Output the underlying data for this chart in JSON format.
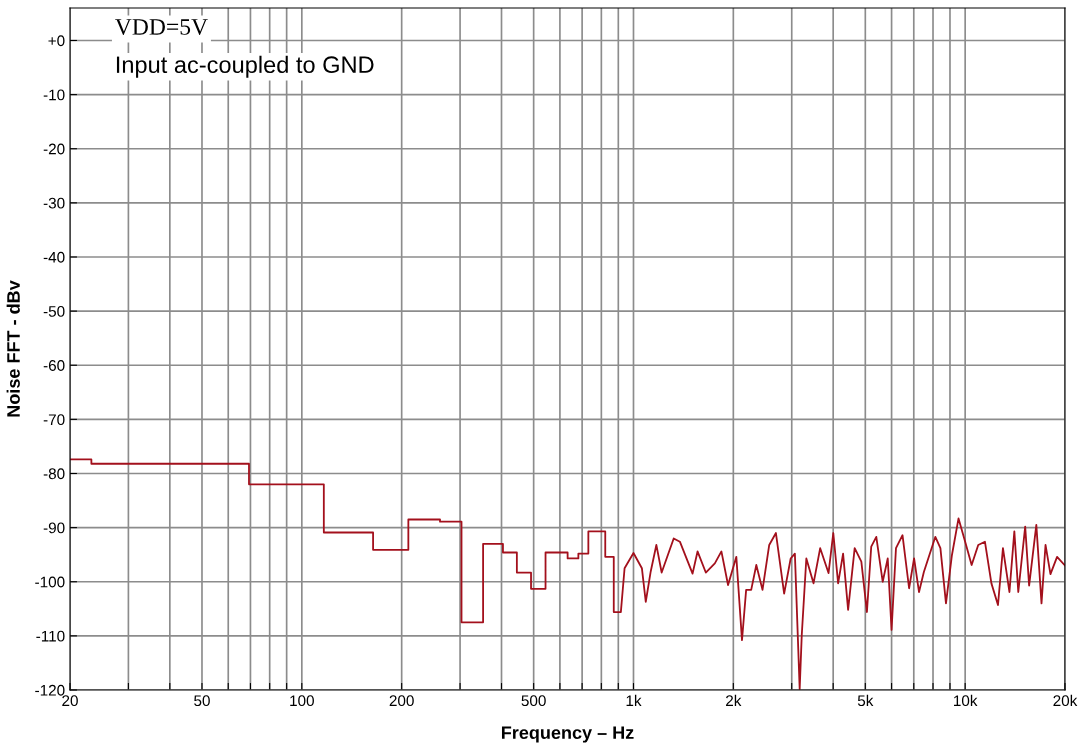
{
  "chart_data": {
    "type": "line",
    "xlabel": "Frequency – Hz",
    "ylabel": "Noise FFT - dBv",
    "annotations": [
      "VDD=5V",
      "Input ac-coupled to GND"
    ],
    "log": "x",
    "grid": true,
    "legend": false,
    "marker": "none",
    "line_style": "solid",
    "xlim": [
      20,
      20000
    ],
    "ylim": [
      -120,
      6
    ],
    "xticks": [
      20,
      {
        "value": 30,
        "label": null
      },
      {
        "value": 40,
        "label": null
      },
      50,
      {
        "value": 60,
        "label": null
      },
      {
        "value": 70,
        "label": null
      },
      {
        "value": 80,
        "label": null
      },
      {
        "value": 90,
        "label": null
      },
      100,
      200,
      {
        "value": 300,
        "label": null
      },
      {
        "value": 400,
        "label": null
      },
      500,
      {
        "value": 600,
        "label": null
      },
      {
        "value": 700,
        "label": null
      },
      {
        "value": 800,
        "label": null
      },
      {
        "value": 900,
        "label": null
      },
      {
        "value": 1000,
        "label": "1k"
      },
      {
        "value": 2000,
        "label": "2k"
      },
      {
        "value": 3000,
        "label": null
      },
      {
        "value": 4000,
        "label": null
      },
      {
        "value": 5000,
        "label": "5k"
      },
      {
        "value": 6000,
        "label": null
      },
      {
        "value": 7000,
        "label": null
      },
      {
        "value": 8000,
        "label": null
      },
      {
        "value": 9000,
        "label": null
      },
      {
        "value": 10000,
        "label": "10k"
      },
      {
        "value": 20000,
        "label": "20k"
      }
    ],
    "yticks": [
      {
        "value": 0,
        "label": "+0"
      },
      -10,
      -20,
      -30,
      -40,
      -50,
      -60,
      -70,
      -80,
      -90,
      -100,
      -110,
      -120
    ],
    "series": [
      {
        "color": "#a3101c",
        "x": [
          20,
          23.2,
          23.2,
          69.3,
          69.3,
          116.5,
          116.5,
          164,
          164,
          209.5,
          209.5,
          261,
          261,
          303,
          303,
          352,
          352,
          404,
          404,
          445,
          445,
          491,
          491,
          543,
          543,
          633,
          633,
          682,
          682,
          731,
          731,
          822,
          822,
          872,
          872,
          916,
          940,
          1000,
          1060,
          1089,
          1127,
          1172,
          1216,
          1322,
          1380,
          1507,
          1560,
          1652,
          1759,
          1841,
          1928,
          2042,
          2124,
          2186,
          2264,
          2346,
          2449,
          2566,
          2688,
          2846,
          2978,
          3066,
          3170,
          3216,
          3320,
          3490,
          3655,
          3873,
          4003,
          4140,
          4285,
          4437,
          4644,
          4864,
          5056,
          5210,
          5396,
          5641,
          5842,
          5999,
          6186,
          6473,
          6776,
          7015,
          7260,
          7507,
          8131,
          8421,
          8753,
          9121,
          9550,
          10000,
          10460,
          10950,
          11470,
          12000,
          12560,
          13000,
          13600,
          14070,
          14460,
          15170,
          15590,
          16390,
          16990,
          17470,
          18080,
          18930,
          20000
        ],
        "values": [
          -77.4,
          -77.4,
          -78.2,
          -78.2,
          -82.0,
          -82.0,
          -90.9,
          -90.9,
          -94.1,
          -94.1,
          -88.5,
          -88.5,
          -88.9,
          -88.9,
          -107.5,
          -107.5,
          -93.0,
          -93.0,
          -94.6,
          -94.6,
          -98.3,
          -98.3,
          -101.3,
          -101.3,
          -94.6,
          -94.6,
          -95.7,
          -95.7,
          -94.8,
          -94.8,
          -90.7,
          -90.7,
          -95.4,
          -95.4,
          -105.6,
          -105.6,
          -97.5,
          -94.7,
          -97.5,
          -103.7,
          -98.1,
          -93.2,
          -98.3,
          -92.0,
          -92.6,
          -98.5,
          -94.4,
          -98.3,
          -96.6,
          -94.4,
          -100.6,
          -95.4,
          -110.8,
          -101.5,
          -101.5,
          -96.9,
          -101.5,
          -93.2,
          -91.0,
          -102.2,
          -95.7,
          -94.8,
          -119.8,
          -109.9,
          -95.7,
          -100.3,
          -93.8,
          -98.4,
          -91.0,
          -100.3,
          -94.8,
          -105.2,
          -93.8,
          -96.3,
          -105.6,
          -93.5,
          -91.7,
          -100.0,
          -95.7,
          -108.9,
          -93.8,
          -91.4,
          -101.2,
          -95.7,
          -101.9,
          -98.2,
          -91.7,
          -93.8,
          -104.0,
          -95.1,
          -88.3,
          -92.6,
          -96.9,
          -93.2,
          -92.6,
          -100.3,
          -104.3,
          -93.8,
          -101.9,
          -90.7,
          -101.9,
          -89.8,
          -100.7,
          -89.5,
          -104.0,
          -93.2,
          -98.6,
          -95.4,
          -97.0
        ]
      }
    ]
  }
}
